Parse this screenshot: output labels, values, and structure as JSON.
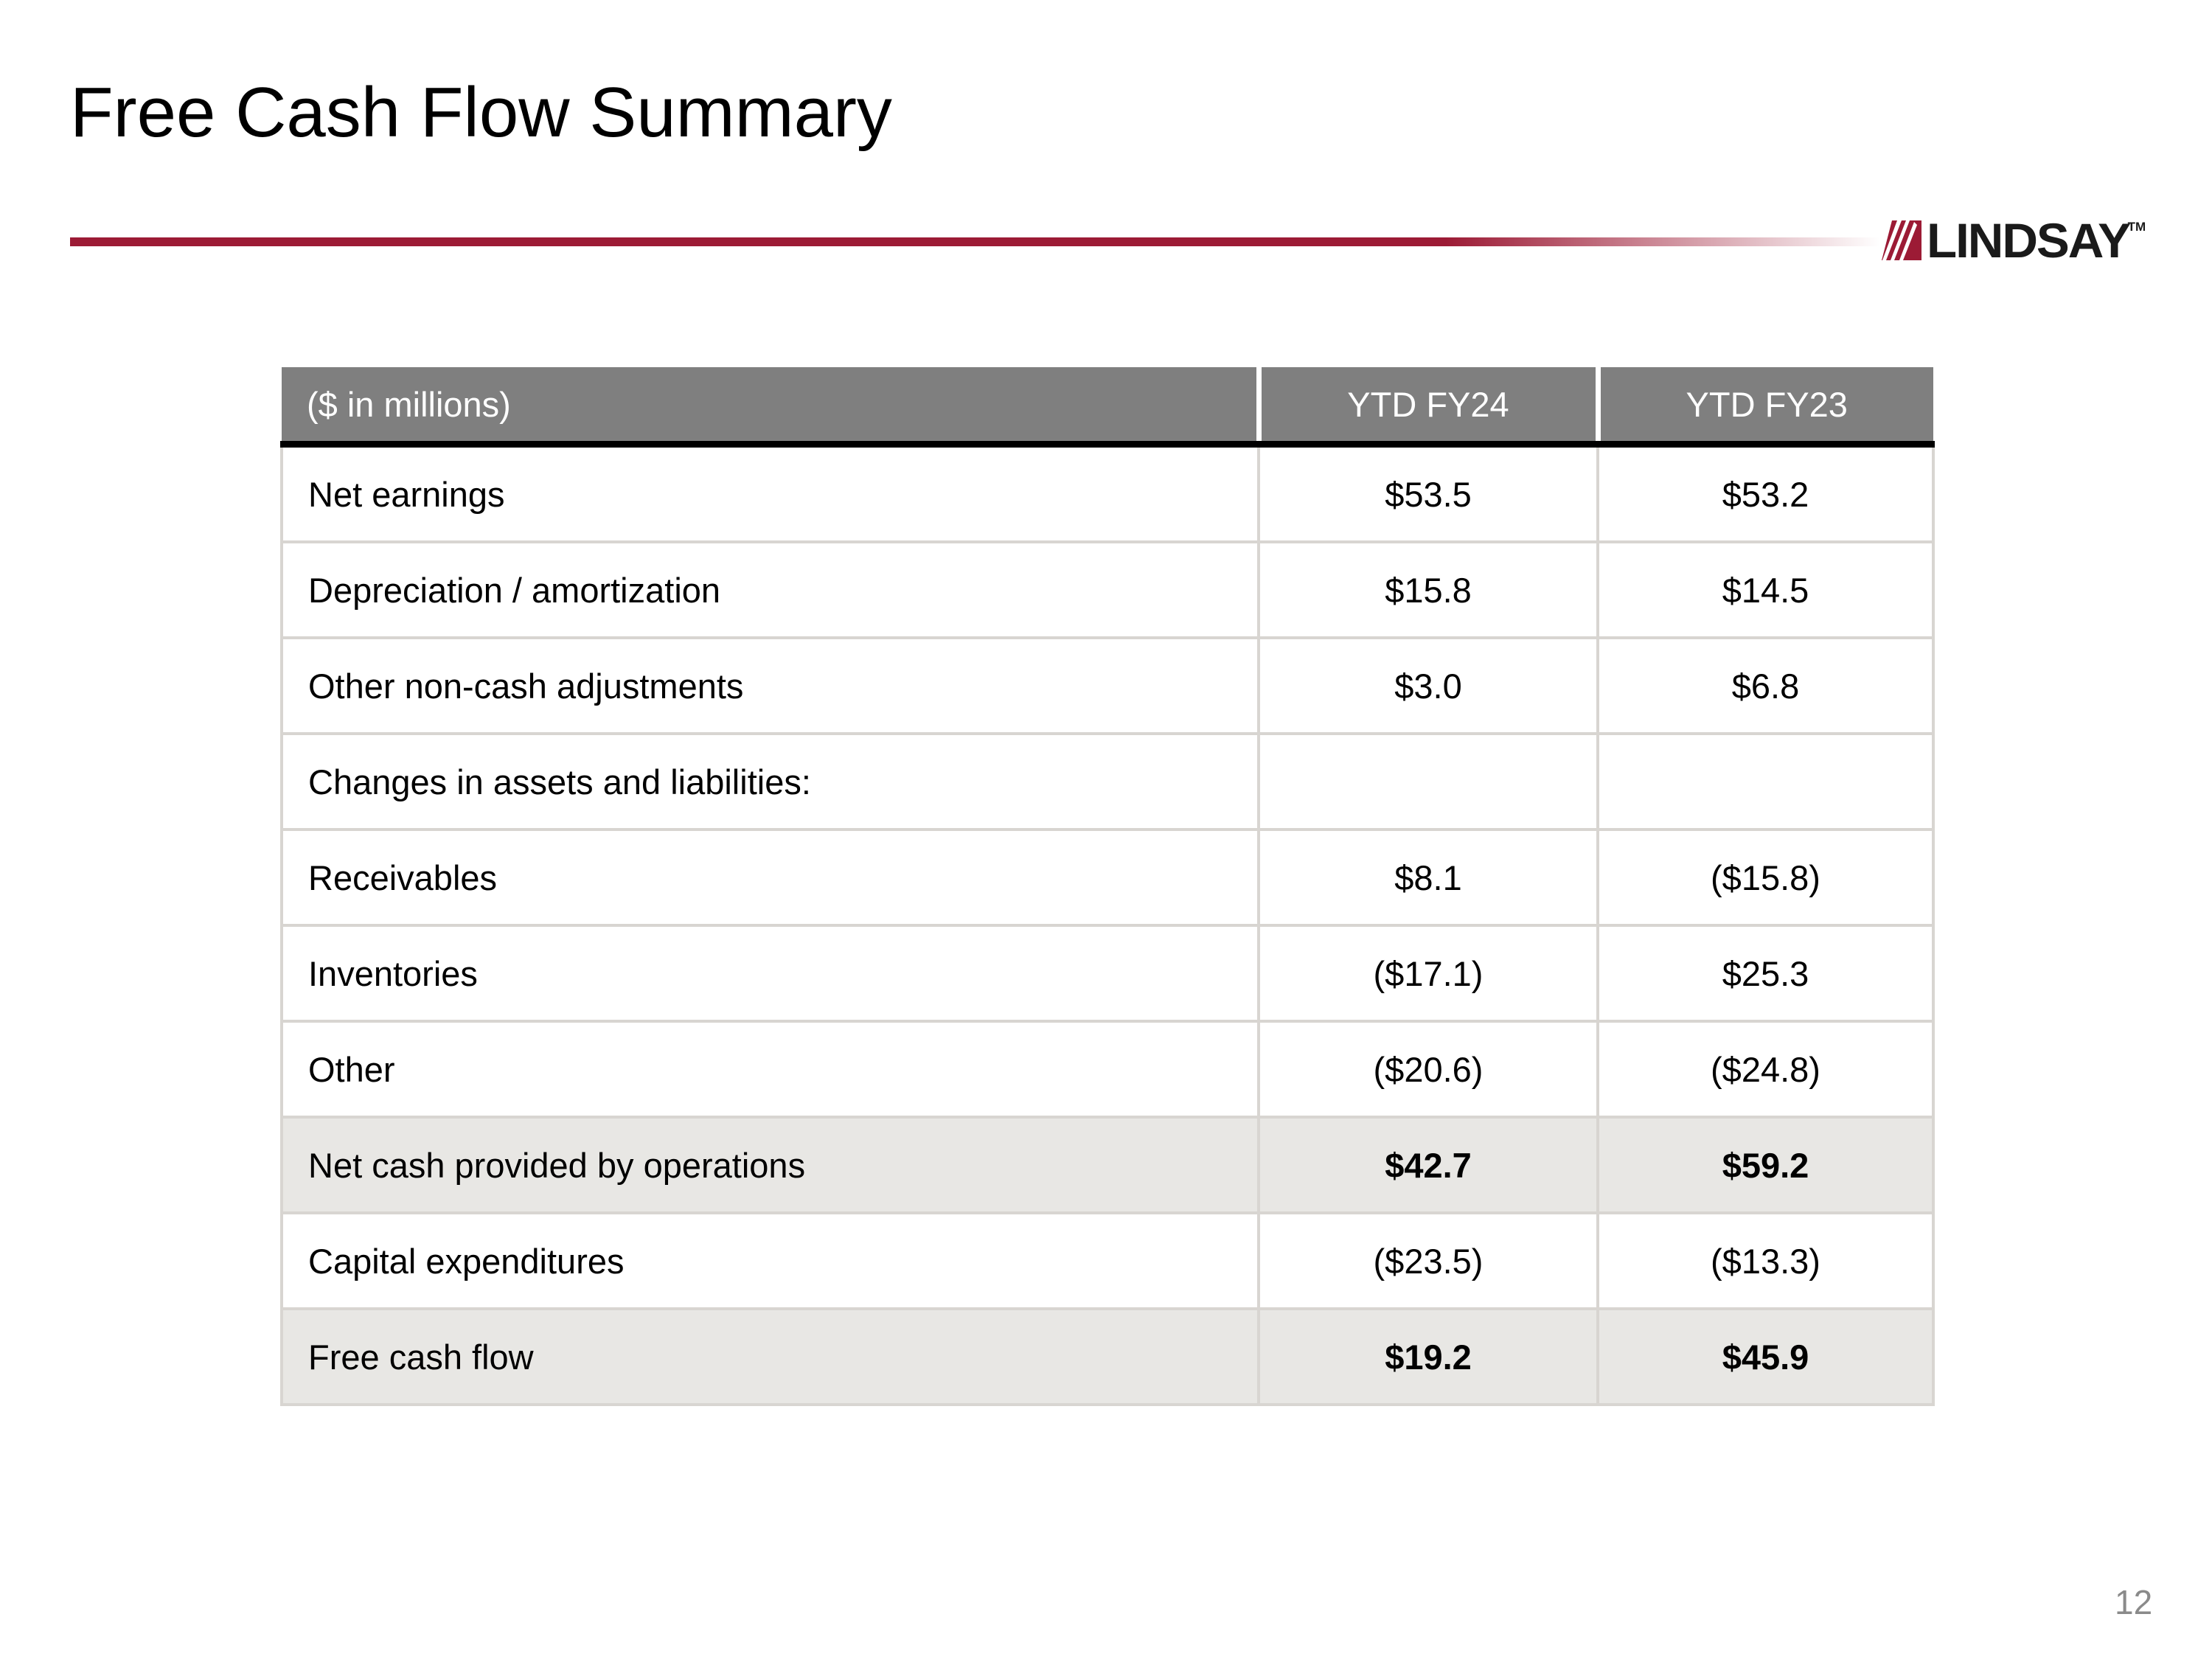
{
  "slide": {
    "title": "Free Cash Flow Summary",
    "page_number": "12"
  },
  "logo": {
    "text": "LINDSAY",
    "tm": "TM",
    "mark_icon": "red-diagonal-stripes-square"
  },
  "colors": {
    "accent_red": "#9C1B35",
    "header_gray": "#7F7F7F",
    "header_text": "#FFFFFF",
    "shaded_row": "#E8E7E4",
    "grid_line": "#D8D5D1",
    "header_underline": "#000000",
    "page_number_gray": "#8A8A8A"
  },
  "table": {
    "columns": [
      "($ in millions)",
      "YTD FY24",
      "YTD FY23"
    ],
    "rows": [
      {
        "label": "Net earnings",
        "fy24": "$53.5",
        "fy23": "$53.2",
        "bold": false,
        "shaded": false
      },
      {
        "label": "Depreciation / amortization",
        "fy24": "$15.8",
        "fy23": "$14.5",
        "bold": false,
        "shaded": false
      },
      {
        "label": "Other non-cash adjustments",
        "fy24": "$3.0",
        "fy23": "$6.8",
        "bold": false,
        "shaded": false
      },
      {
        "label": "Changes in assets and liabilities:",
        "fy24": "",
        "fy23": "",
        "bold": false,
        "shaded": false
      },
      {
        "label": "Receivables",
        "fy24": "$8.1",
        "fy23": "($15.8)",
        "bold": false,
        "shaded": false
      },
      {
        "label": "Inventories",
        "fy24": "($17.1)",
        "fy23": "$25.3",
        "bold": false,
        "shaded": false
      },
      {
        "label": "Other",
        "fy24": "($20.6)",
        "fy23": "($24.8)",
        "bold": false,
        "shaded": false
      },
      {
        "label": "Net cash provided by operations",
        "fy24": "$42.7",
        "fy23": "$59.2",
        "bold": true,
        "shaded": true
      },
      {
        "label": "Capital expenditures",
        "fy24": "($23.5)",
        "fy23": "($13.3)",
        "bold": false,
        "shaded": false
      },
      {
        "label": "Free cash flow",
        "fy24": "$19.2",
        "fy23": "$45.9",
        "bold": true,
        "shaded": true
      }
    ]
  }
}
